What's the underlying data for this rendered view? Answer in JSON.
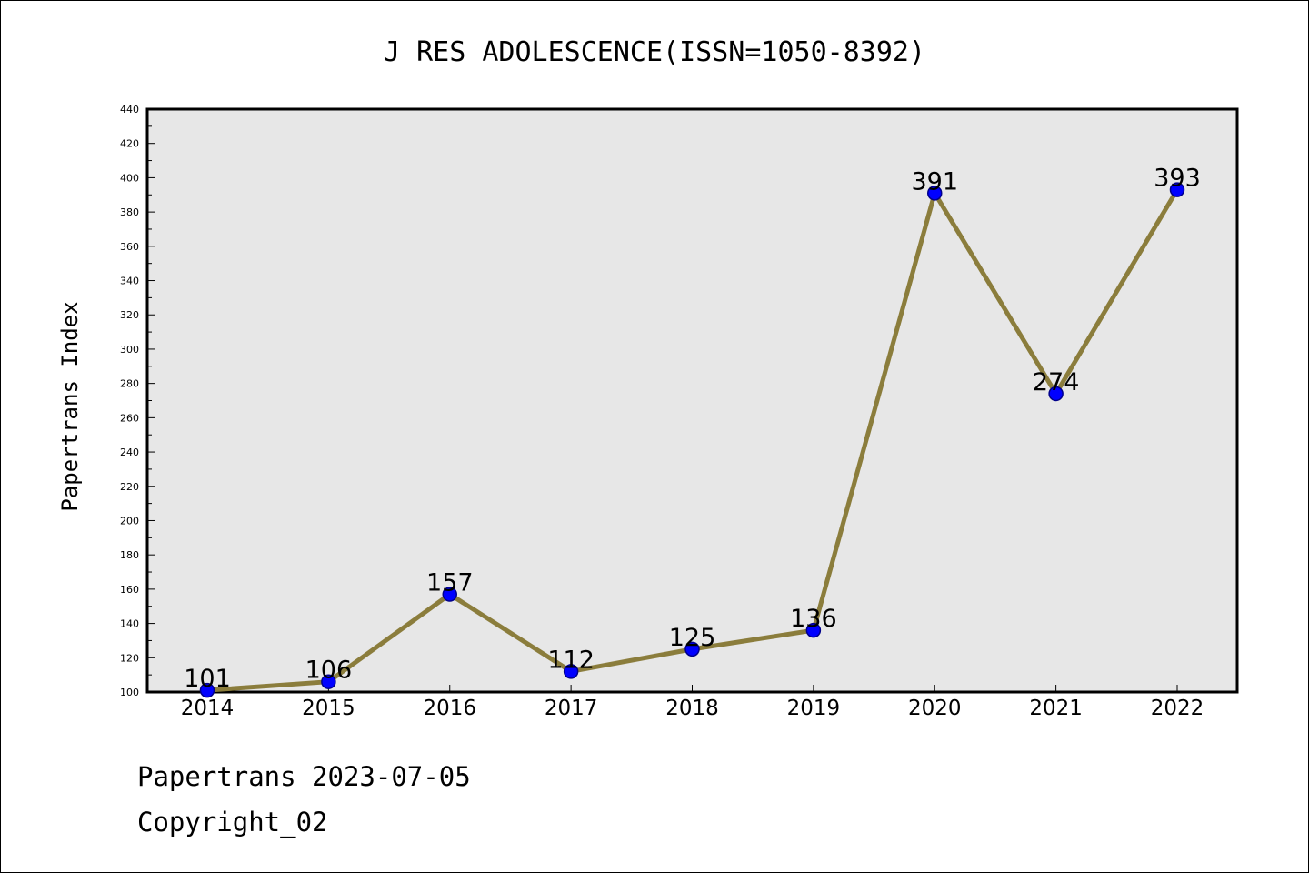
{
  "chart_data": {
    "type": "line",
    "title": "J RES ADOLESCENCE(ISSN=1050-8392)",
    "xlabel": "",
    "ylabel": "Papertrans Index",
    "categories": [
      "2014",
      "2015",
      "2016",
      "2017",
      "2018",
      "2019",
      "2020",
      "2021",
      "2022"
    ],
    "series": [
      {
        "values": [
          101,
          106,
          157,
          112,
          125,
          136,
          391,
          274,
          393
        ]
      }
    ],
    "data_labels": [
      "101",
      "106",
      "157",
      "112",
      "125",
      "136",
      "391",
      "274",
      "393"
    ],
    "ylim": [
      100,
      440
    ],
    "y_ticks": [
      "100",
      "120",
      "140",
      "160",
      "180",
      "200",
      "220",
      "240",
      "260",
      "280",
      "300",
      "320",
      "340",
      "360",
      "380",
      "400",
      "420",
      "440"
    ],
    "grid": false,
    "legend": "none",
    "colors": {
      "line": "#8b7d3c",
      "marker_fill": "#0000ff",
      "marker_edge": "#00008b",
      "plot_background": "#e7e7e7"
    }
  },
  "footer": {
    "line1": "Papertrans 2023-07-05",
    "line2": "Copyright_02"
  }
}
